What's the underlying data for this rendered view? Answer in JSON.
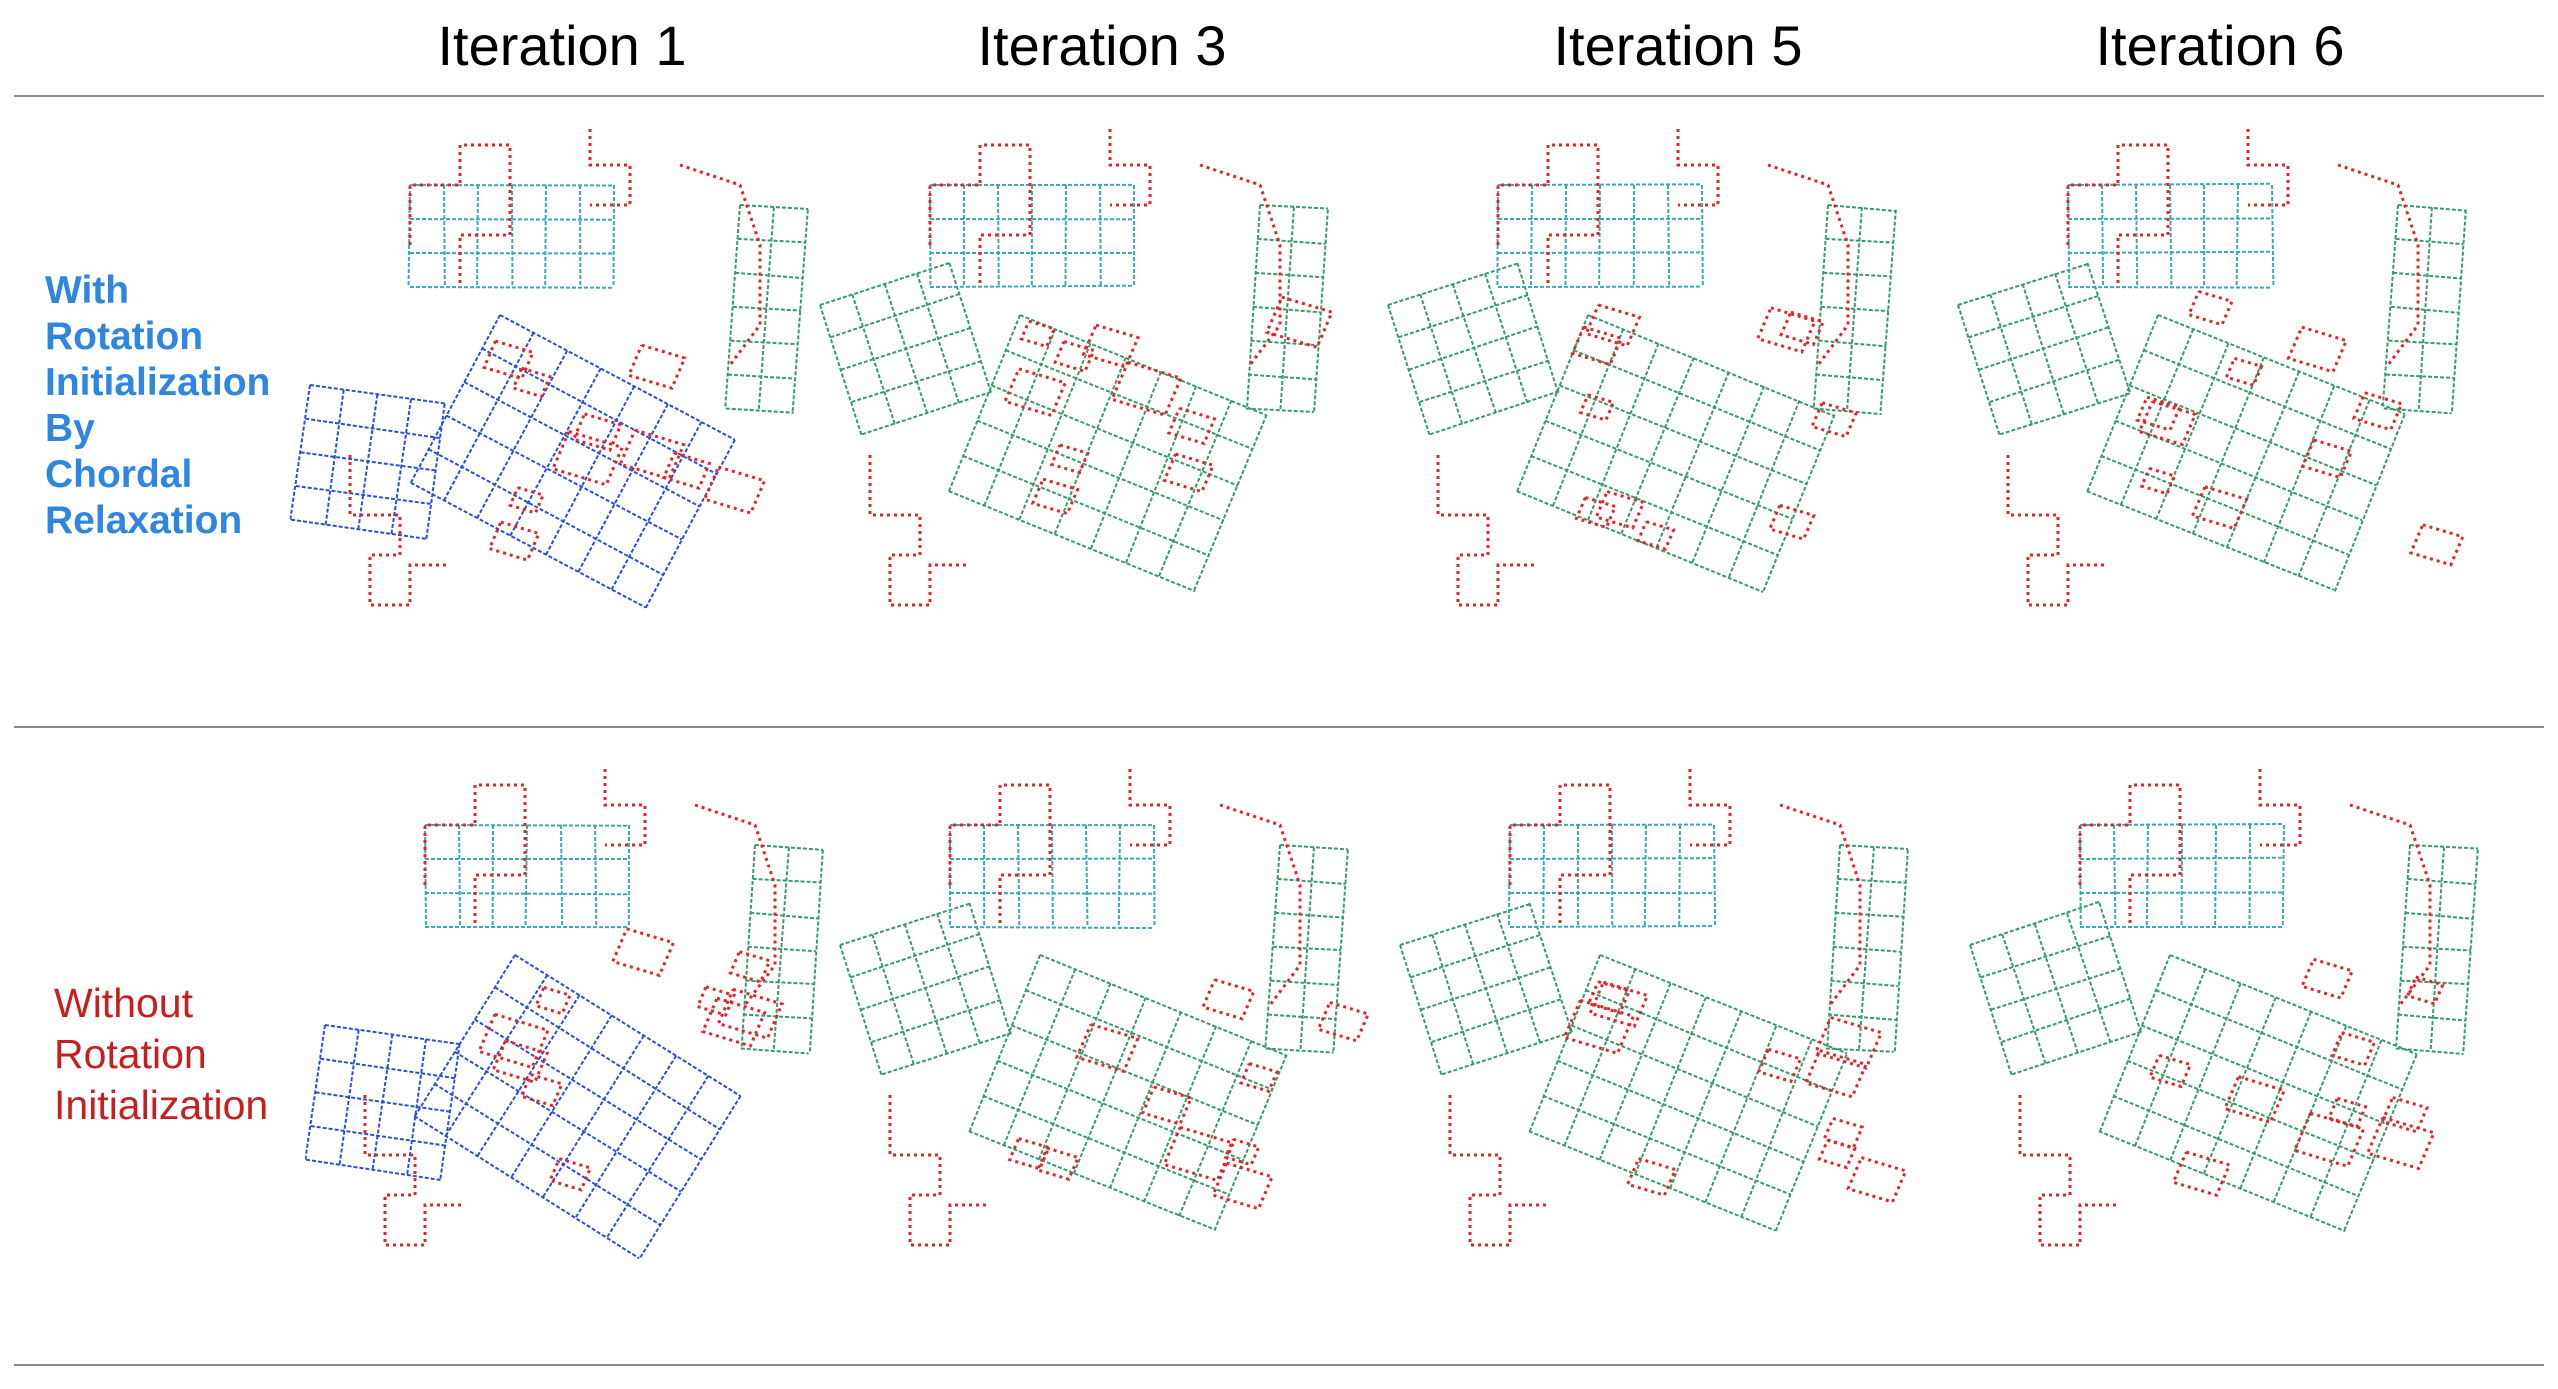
{
  "columns": [
    "Iteration 1",
    "Iteration 3",
    "Iteration 5",
    "Iteration 6"
  ],
  "rows": [
    {
      "label_lines": [
        "With",
        "Rotation",
        "Initialization",
        "By",
        "Chordal",
        "Relaxation"
      ]
    },
    {
      "label_lines": [
        "Without",
        "Rotation",
        "Initialization"
      ]
    }
  ],
  "colors": {
    "accent_blue": "#2f86e0",
    "accent_red": "#c81e1e",
    "trajectory_red": "#e0262a",
    "grid_green": "#3a9a6a",
    "grid_blue": "#2b4fd6",
    "grid_cyan": "#3aa8b8"
  }
}
